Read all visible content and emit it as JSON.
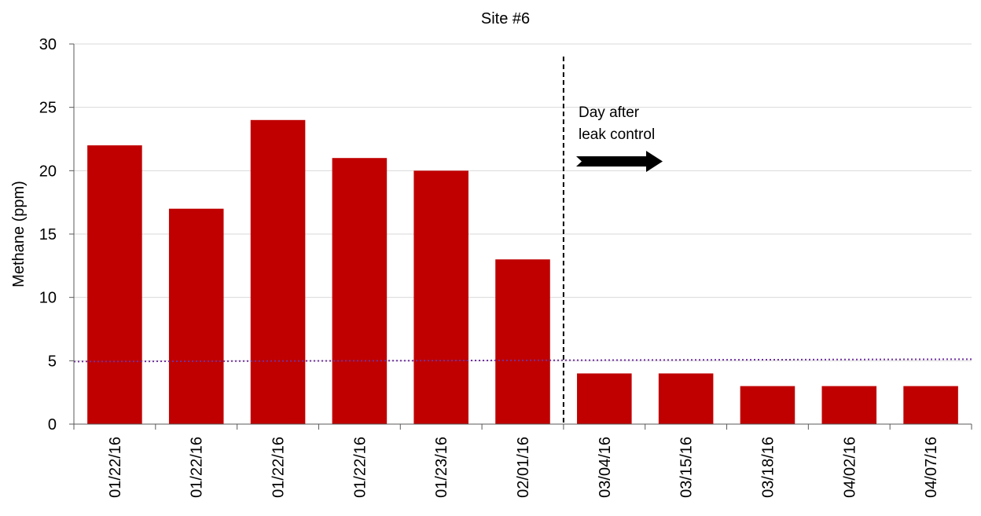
{
  "chart_data": {
    "type": "bar",
    "title": "Site #6",
    "xlabel": "",
    "ylabel": "Methane (ppm)",
    "ylim": [
      0,
      30
    ],
    "yticks": [
      0,
      5,
      10,
      15,
      20,
      25,
      30
    ],
    "grid": true,
    "categories": [
      "01/22/16",
      "01/22/16",
      "01/22/16",
      "01/22/16",
      "01/23/16",
      "02/01/16",
      "03/04/16",
      "03/15/16",
      "03/18/16",
      "04/02/16",
      "04/07/16"
    ],
    "values": [
      22,
      17,
      24,
      21,
      20,
      13,
      4,
      4,
      3,
      3,
      3
    ],
    "bar_color": "#C00000",
    "reference_line": {
      "value": 5,
      "style": "dotted",
      "color": "#7030A0"
    },
    "divider": {
      "after_category_index": 5,
      "style": "dashed",
      "color": "#000000"
    },
    "annotation": {
      "lines": [
        "Day after",
        "leak control"
      ],
      "arrow": "right",
      "color": "#000000"
    }
  }
}
